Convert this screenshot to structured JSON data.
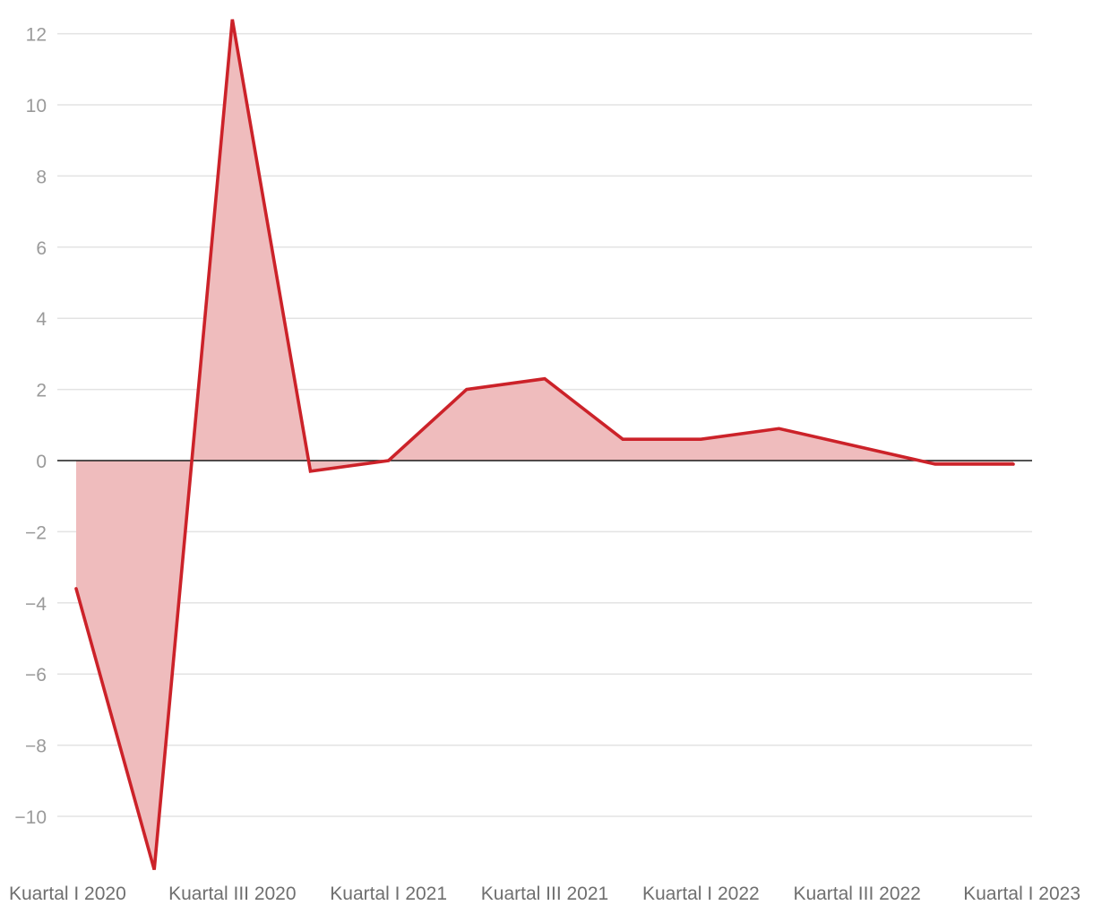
{
  "chart_data": {
    "type": "area",
    "title": "",
    "xlabel": "",
    "ylabel": "",
    "x": [
      "Kuartal I 2020",
      "Kuartal II 2020",
      "Kuartal III 2020",
      "Kuartal IV 2020",
      "Kuartal I 2021",
      "Kuartal II 2021",
      "Kuartal III 2021",
      "Kuartal IV 2021",
      "Kuartal I 2022",
      "Kuartal II 2022",
      "Kuartal III 2022",
      "Kuartal IV 2022",
      "Kuartal I 2023"
    ],
    "x_tick_labels": [
      "Kuartal I 2020",
      "Kuartal III 2020",
      "Kuartal I 2021",
      "Kuartal III 2021",
      "Kuartal I 2022",
      "Kuartal III 2022",
      "Kuartal I 2023"
    ],
    "series": [
      {
        "values": [
          -3.6,
          -11.5,
          12.4,
          -0.3,
          0.0,
          2.0,
          2.3,
          0.6,
          0.6,
          0.9,
          0.4,
          -0.1,
          -0.1
        ]
      }
    ],
    "ylim": [
      -11.5,
      12.4
    ],
    "y_ticks": [
      -10,
      -8,
      -6,
      -4,
      -2,
      0,
      2,
      4,
      6,
      8,
      10,
      12
    ],
    "y_tick_labels": [
      "−10",
      "−8",
      "−6",
      "−4",
      "−2",
      "0",
      "2",
      "4",
      "6",
      "8",
      "10",
      "12"
    ],
    "grid": true,
    "legend": "none",
    "colors": {
      "line": "#cc2229",
      "area": "#efbcbd",
      "zero_line": "#1a1a1a",
      "grid": "#e3e3e3"
    }
  }
}
